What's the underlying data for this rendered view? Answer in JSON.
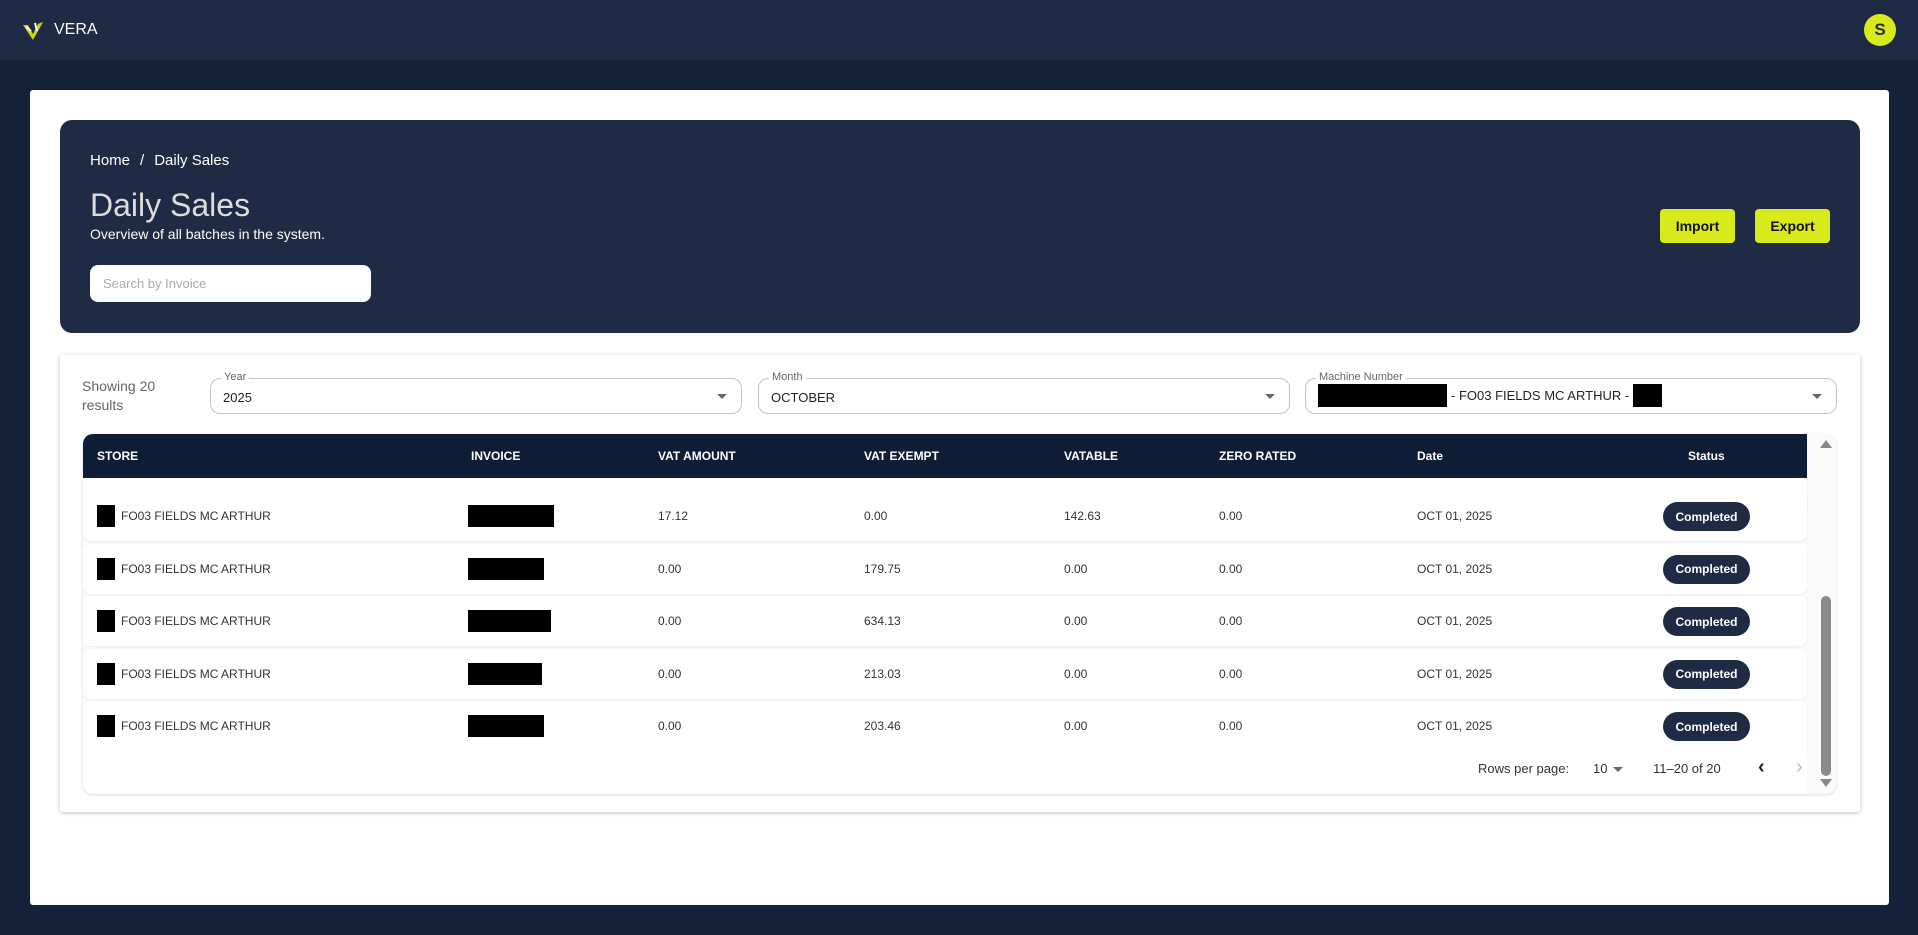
{
  "app": {
    "name": "VERA",
    "avatar_initial": "S",
    "accent": "#d9ea1a",
    "navy": "#1f2a44"
  },
  "breadcrumb": {
    "home": "Home",
    "separator": "/",
    "current": "Daily Sales"
  },
  "header": {
    "title": "Daily Sales",
    "subtitle": "Overview of all batches in the system.",
    "search_placeholder": "Search by Invoice",
    "import_label": "Import",
    "export_label": "Export"
  },
  "filters": {
    "results_text": "Showing 20 results",
    "year": {
      "label": "Year",
      "value": "2025"
    },
    "month": {
      "label": "Month",
      "value": "OCTOBER"
    },
    "machine": {
      "label": "Machine Number",
      "value": "- FO03 FIELDS MC ARTHUR -"
    }
  },
  "table": {
    "columns": [
      "STORE",
      "INVOICE",
      "VAT AMOUNT",
      "VAT EXEMPT",
      "VATABLE",
      "ZERO RATED",
      "Date",
      "Status"
    ],
    "rows": [
      {
        "store": "FO03 FIELDS MC ARTHUR",
        "vat_amount": "17.12",
        "vat_exempt": "0.00",
        "vatable": "142.63",
        "zero_rated": "0.00",
        "date": "OCT 01, 2025",
        "status": "Completed"
      },
      {
        "store": "FO03 FIELDS MC ARTHUR",
        "vat_amount": "0.00",
        "vat_exempt": "179.75",
        "vatable": "0.00",
        "zero_rated": "0.00",
        "date": "OCT 01, 2025",
        "status": "Completed"
      },
      {
        "store": "FO03 FIELDS MC ARTHUR",
        "vat_amount": "0.00",
        "vat_exempt": "634.13",
        "vatable": "0.00",
        "zero_rated": "0.00",
        "date": "OCT 01, 2025",
        "status": "Completed"
      },
      {
        "store": "FO03 FIELDS MC ARTHUR",
        "vat_amount": "0.00",
        "vat_exempt": "213.03",
        "vatable": "0.00",
        "zero_rated": "0.00",
        "date": "OCT 01, 2025",
        "status": "Completed"
      },
      {
        "store": "FO03 FIELDS MC ARTHUR",
        "vat_amount": "0.00",
        "vat_exempt": "203.46",
        "vatable": "0.00",
        "zero_rated": "0.00",
        "date": "OCT 01, 2025",
        "status": "Completed"
      }
    ]
  },
  "pagination": {
    "rows_per_page_label": "Rows per page:",
    "rows_per_page": "10",
    "range": "11–20 of 20"
  }
}
